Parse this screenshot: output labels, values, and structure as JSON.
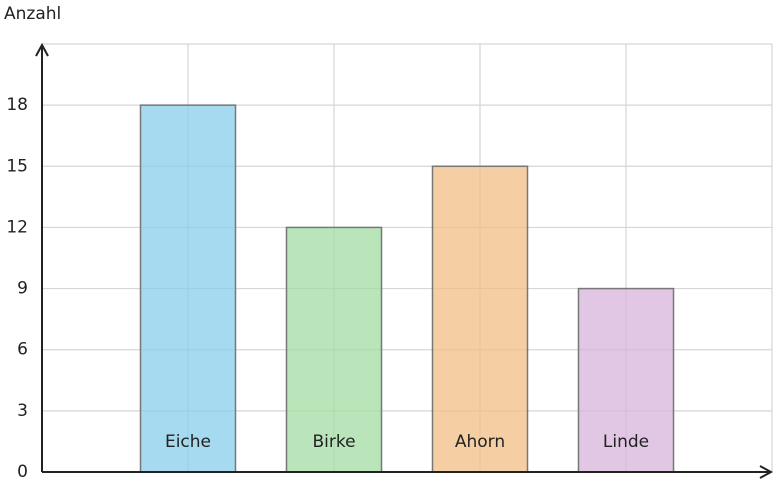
{
  "chart_data": {
    "type": "bar",
    "y_label": "Anzahl",
    "categories": [
      "Eiche",
      "Birke",
      "Ahorn",
      "Linde"
    ],
    "values": [
      18,
      12,
      15,
      9
    ],
    "colors": [
      "#87ceeb",
      "#a3dca3",
      "#f2bd85",
      "#d8b4dc"
    ],
    "ylim": [
      0,
      21
    ],
    "yticks": [
      0,
      3,
      6,
      9,
      12,
      15,
      18
    ],
    "grid": true
  }
}
